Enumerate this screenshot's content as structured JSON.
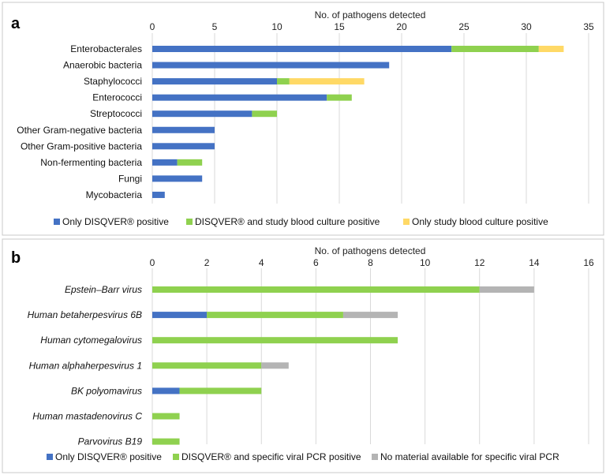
{
  "colors": {
    "only_disqver": "#4472C4",
    "both": "#8FD14F",
    "only_culture": "#FFD966",
    "no_material": "#B4B4B4"
  },
  "panels": [
    {
      "letter": "a",
      "legend": [
        {
          "label": "Only DISQVER® positive",
          "color": "#4472C4"
        },
        {
          "label": "DISQVER® and study blood culture positive",
          "color": "#8FD14F"
        },
        {
          "label": "Only study blood culture positive",
          "color": "#FFD966"
        }
      ]
    },
    {
      "letter": "b",
      "legend": [
        {
          "label": "Only DISQVER® positive",
          "color": "#4472C4"
        },
        {
          "label": "DISQVER® and specific viral PCR positive",
          "color": "#8FD14F"
        },
        {
          "label": "No material available for specific viral PCR",
          "color": "#B4B4B4"
        }
      ]
    }
  ],
  "chart_data": [
    {
      "type": "bar",
      "orientation": "horizontal",
      "stacked": true,
      "xlabel": "No. of pathogens detected",
      "xlim": [
        0,
        35
      ],
      "xticks": [
        0,
        5,
        10,
        15,
        20,
        25,
        30,
        35
      ],
      "grid": true,
      "legend_position": "bottom",
      "categories": [
        "Enterobacterales",
        "Anaerobic bacteria",
        "Staphylococci",
        "Enterococci",
        "Streptococci",
        "Other Gram-negative bacteria",
        "Other Gram-positive bacteria",
        "Non-fermenting bacteria",
        "Fungi",
        "Mycobacteria"
      ],
      "italic_categories": false,
      "series": [
        {
          "name": "Only DISQVER® positive",
          "color": "#4472C4",
          "values": [
            24,
            19,
            10,
            14,
            8,
            5,
            5,
            2,
            4,
            1
          ]
        },
        {
          "name": "DISQVER® and study blood culture positive",
          "color": "#8FD14F",
          "values": [
            7,
            0,
            1,
            2,
            2,
            0,
            0,
            2,
            0,
            0
          ]
        },
        {
          "name": "Only study blood culture positive",
          "color": "#FFD966",
          "values": [
            2,
            0,
            6,
            0,
            0,
            0,
            0,
            0,
            0,
            0
          ]
        }
      ]
    },
    {
      "type": "bar",
      "orientation": "horizontal",
      "stacked": true,
      "xlabel": "No. of pathogens detected",
      "xlim": [
        0,
        16
      ],
      "xticks": [
        0,
        2,
        4,
        6,
        8,
        10,
        12,
        14,
        16
      ],
      "grid": true,
      "legend_position": "bottom",
      "categories": [
        "Epstein–Barr virus",
        "Human betaherpesvirus 6B",
        "Human cytomegalovirus",
        "Human alphaherpesvirus 1",
        "BK polyomavirus",
        "Human mastadenovirus C",
        "Parvovirus B19"
      ],
      "italic_categories": true,
      "series": [
        {
          "name": "Only DISQVER® positive",
          "color": "#4472C4",
          "values": [
            0,
            2,
            0,
            0,
            1,
            0,
            0
          ]
        },
        {
          "name": "DISQVER® and specific viral PCR positive",
          "color": "#8FD14F",
          "values": [
            12,
            5,
            9,
            4,
            3,
            1,
            1
          ]
        },
        {
          "name": "No material available for specific viral PCR",
          "color": "#B4B4B4",
          "values": [
            2,
            2,
            0,
            1,
            0,
            0,
            0
          ]
        }
      ]
    }
  ]
}
